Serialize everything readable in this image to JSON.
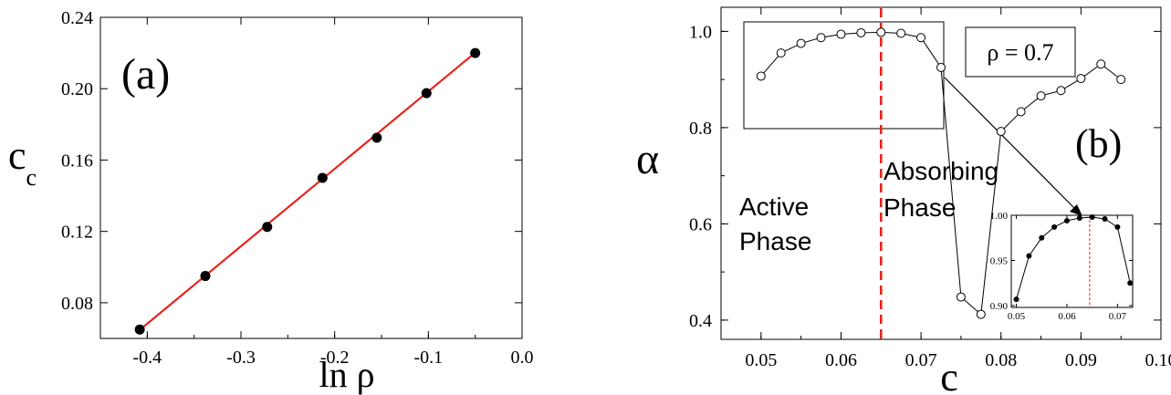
{
  "colors": {
    "fit_line": "#e8231b",
    "critical_line": "#e8231b",
    "phase_label": "#1f8a1f",
    "axes": "#000000",
    "marker_fill": "#000000",
    "marker_open": "#ffffff"
  },
  "panel_a": {
    "panel_label": "(a)",
    "xlabel": "ln ρ",
    "ylabel_main": "c",
    "ylabel_sub": "c"
  },
  "panel_b": {
    "panel_label": "(b)",
    "xlabel": "c",
    "ylabel": "α",
    "rho_label": "ρ = 0.7",
    "active_label_line1": "Active",
    "active_label_line2": "Phase",
    "absorbing_label_line1": "Absorbing",
    "absorbing_label_line2": "Phase"
  },
  "chart_data": [
    {
      "id": "a",
      "type": "scatter",
      "title": "",
      "xlabel": "ln ρ",
      "ylabel": "c_c",
      "xlim": [
        -0.45,
        0.0
      ],
      "ylim": [
        0.06,
        0.24
      ],
      "xticks": [
        -0.4,
        -0.3,
        -0.2,
        -0.1,
        0.0
      ],
      "xtick_labels": [
        "-0.4",
        "-0.3",
        "-0.2",
        "-0.1",
        "0.0"
      ],
      "yticks": [
        0.08,
        0.12,
        0.16,
        0.2,
        0.24
      ],
      "ytick_labels": [
        "0.08",
        "0.12",
        "0.16",
        "0.20",
        "0.24"
      ],
      "grid": false,
      "series": [
        {
          "marker": "filled-circle",
          "x": [
            -0.408,
            -0.338,
            -0.272,
            -0.213,
            -0.155,
            -0.102,
            -0.05
          ],
          "y": [
            0.065,
            0.095,
            0.1225,
            0.15,
            0.1725,
            0.1975,
            0.22
          ]
        }
      ],
      "fit_line": {
        "x": [
          -0.408,
          -0.05
        ],
        "y": [
          0.0648,
          0.2202
        ]
      }
    },
    {
      "id": "b",
      "type": "line",
      "title": "",
      "xlabel": "c",
      "ylabel": "α",
      "xlim": [
        0.045,
        0.1
      ],
      "ylim": [
        0.36,
        1.05
      ],
      "xticks": [
        0.05,
        0.06,
        0.07,
        0.08,
        0.09,
        0.1
      ],
      "xtick_labels": [
        "0.05",
        "0.06",
        "0.07",
        "0.08",
        "0.09",
        "0.10"
      ],
      "yticks": [
        0.4,
        0.6,
        0.8,
        1.0
      ],
      "ytick_labels": [
        "0.4",
        "0.6",
        "0.8",
        "1.0"
      ],
      "grid": false,
      "critical_c": 0.065,
      "series": [
        {
          "marker": "open-circle",
          "x": [
            0.05,
            0.0525,
            0.055,
            0.0575,
            0.06,
            0.0625,
            0.065,
            0.0675,
            0.07,
            0.0725,
            0.075,
            0.0775,
            0.08,
            0.0825,
            0.085,
            0.0875,
            0.09,
            0.0925,
            0.095
          ],
          "y": [
            0.907,
            0.955,
            0.975,
            0.987,
            0.994,
            0.997,
            0.998,
            0.996,
            0.987,
            0.925,
            0.448,
            0.412,
            0.792,
            0.833,
            0.866,
            0.877,
            0.902,
            0.932,
            0.9
          ]
        }
      ],
      "inset": {
        "type": "line",
        "xlim": [
          0.049,
          0.073
        ],
        "ylim": [
          0.898,
          1.0
        ],
        "xticks": [
          0.05,
          0.06,
          0.07
        ],
        "xtick_labels": [
          "0.05",
          "0.06",
          "0.07"
        ],
        "yticks": [
          0.9,
          0.95,
          1.0
        ],
        "ytick_labels": [
          "0.90",
          "0.95",
          "1.00"
        ],
        "critical_c": 0.0645,
        "marker": "filled-circle",
        "x": [
          0.05,
          0.0525,
          0.055,
          0.0575,
          0.06,
          0.0625,
          0.065,
          0.0675,
          0.07,
          0.0725
        ],
        "y": [
          0.907,
          0.955,
          0.975,
          0.987,
          0.994,
          0.997,
          0.998,
          0.996,
          0.987,
          0.925
        ]
      }
    }
  ]
}
